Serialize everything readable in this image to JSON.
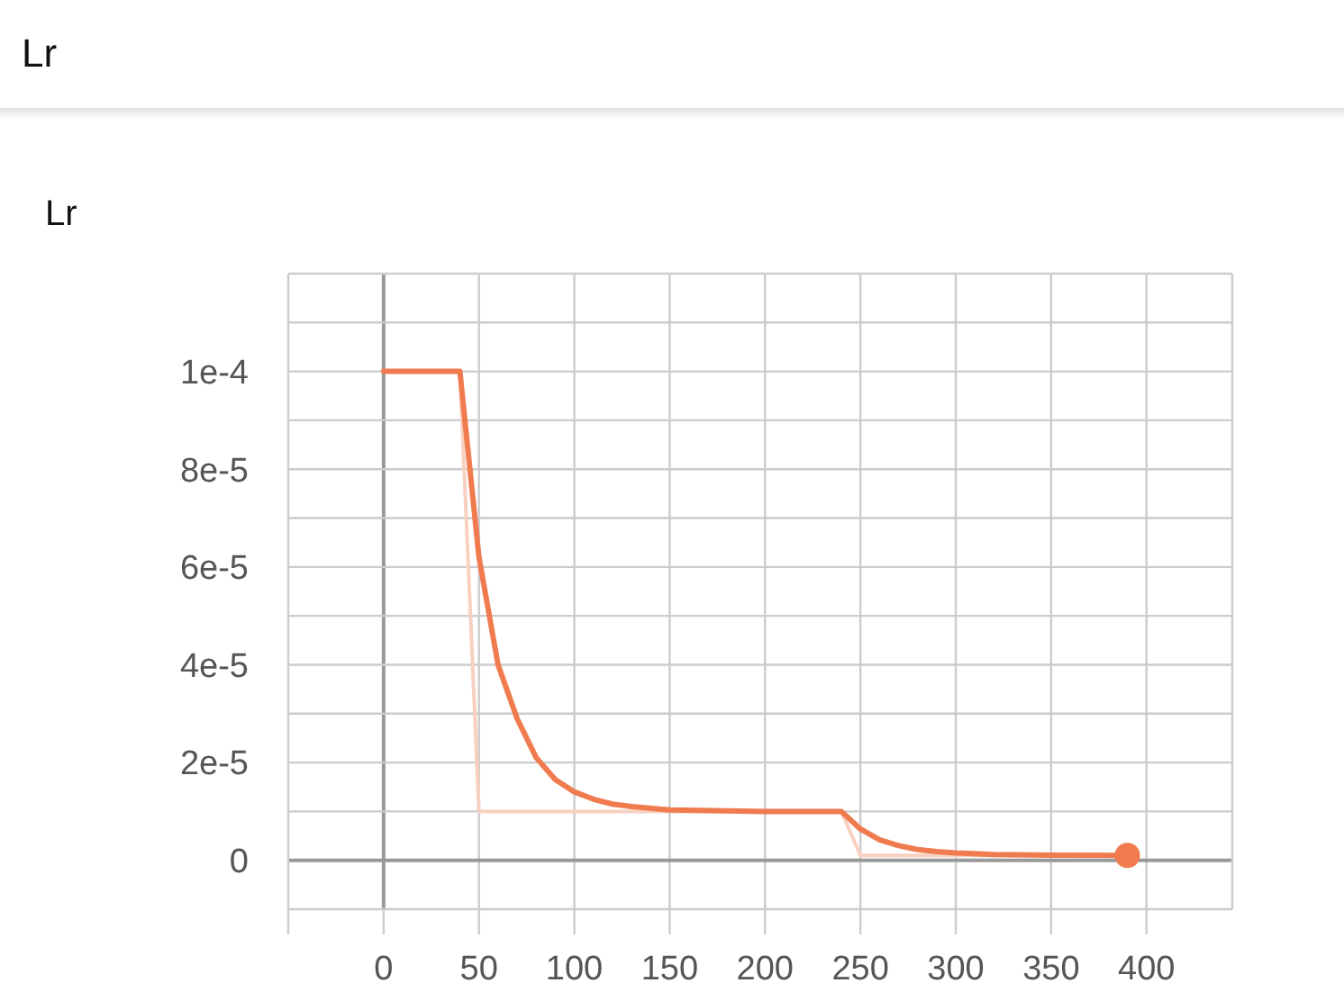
{
  "chart_data": {
    "type": "line",
    "title": "Lr",
    "subtitle": "Lr",
    "xlim": [
      -50,
      445
    ],
    "ylim": [
      -1e-05,
      0.00012
    ],
    "xticks": [
      0,
      50,
      100,
      150,
      200,
      250,
      300,
      350,
      400
    ],
    "yticks": [
      {
        "value": -1e-05,
        "label": null
      },
      0,
      {
        "value": 1e-05,
        "label": null
      },
      {
        "value": 2e-05,
        "label": "2e-5"
      },
      {
        "value": 3e-05,
        "label": null
      },
      {
        "value": 4e-05,
        "label": "4e-5"
      },
      {
        "value": 5e-05,
        "label": null
      },
      {
        "value": 6e-05,
        "label": "6e-5"
      },
      {
        "value": 7e-05,
        "label": null
      },
      {
        "value": 8e-05,
        "label": "8e-5"
      },
      {
        "value": 9e-05,
        "label": null
      },
      {
        "value": 0.0001,
        "label": "1e-4"
      },
      {
        "value": 0.00011,
        "label": null
      },
      {
        "value": 0.00012,
        "label": null
      }
    ],
    "grid": true,
    "series": [
      {
        "color": "#f7d0c0",
        "x": [
          0,
          10,
          20,
          30,
          40,
          50,
          100,
          150,
          200,
          240,
          250,
          300,
          350,
          390
        ],
        "values": [
          0.0001,
          0.0001,
          0.0001,
          0.0001,
          0.0001,
          1e-05,
          1e-05,
          1e-05,
          1e-05,
          1e-05,
          1e-06,
          1e-06,
          1e-06,
          1e-06
        ]
      },
      {
        "color": "#f07b4f",
        "x": [
          0,
          10,
          20,
          30,
          40,
          50,
          60,
          70,
          80,
          90,
          100,
          110,
          120,
          130,
          150,
          200,
          240,
          250,
          260,
          270,
          280,
          290,
          300,
          320,
          350,
          390
        ],
        "values": [
          0.0001,
          0.0001,
          0.0001,
          0.0001,
          0.0001,
          6.2e-05,
          4e-05,
          2.9e-05,
          2.1e-05,
          1.65e-05,
          1.4e-05,
          1.25e-05,
          1.15e-05,
          1.1e-05,
          1.03e-05,
          1e-05,
          1e-05,
          6.4e-06,
          4.2e-06,
          3e-06,
          2.2e-06,
          1.8e-06,
          1.5e-06,
          1.2e-06,
          1.05e-06,
          1e-06
        ]
      },
      {
        "type": "scatter",
        "color": "#f07b4f",
        "x": [
          390
        ],
        "values": [
          1e-06
        ],
        "marker": "circle"
      }
    ]
  }
}
